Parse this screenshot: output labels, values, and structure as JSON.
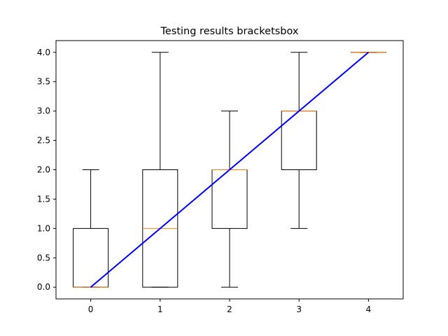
{
  "chart_data": {
    "type": "boxplot",
    "title": "Testing results bracketsbox",
    "xlabel": "",
    "ylabel": "",
    "x_ticks": [
      "0",
      "1",
      "2",
      "3",
      "4"
    ],
    "y_ticks": [
      "0.0",
      "0.5",
      "1.0",
      "1.5",
      "2.0",
      "2.5",
      "3.0",
      "3.5",
      "4.0"
    ],
    "xlim": [
      -0.5,
      4.5
    ],
    "ylim": [
      -0.2,
      4.2
    ],
    "grid": false,
    "boxes": [
      {
        "x": 0,
        "whisker_low": 0,
        "q1": 0,
        "median": 0,
        "q3": 1,
        "whisker_high": 2
      },
      {
        "x": 1,
        "whisker_low": 0,
        "q1": 0,
        "median": 1,
        "q3": 2,
        "whisker_high": 4
      },
      {
        "x": 2,
        "whisker_low": 0,
        "q1": 1,
        "median": 2,
        "q3": 2,
        "whisker_high": 3
      },
      {
        "x": 3,
        "whisker_low": 1,
        "q1": 2,
        "median": 3,
        "q3": 3,
        "whisker_high": 4
      },
      {
        "x": 4,
        "whisker_low": 4,
        "q1": 4,
        "median": 4,
        "q3": 4,
        "whisker_high": 4
      }
    ],
    "reference_line": {
      "x": [
        0,
        4
      ],
      "y": [
        0,
        4
      ],
      "color": "#0000ff"
    },
    "colors": {
      "box": "#000000",
      "median": "#ff7f0e",
      "line": "#0000ff"
    }
  }
}
